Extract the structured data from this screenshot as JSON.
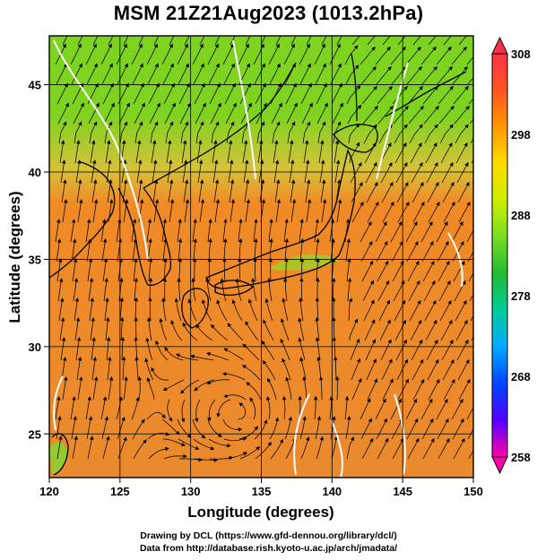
{
  "title": "MSM 21Z21Aug2023 (1013.2hPa)",
  "map": {
    "x_label": "Longitude (degrees)",
    "y_label": "Latitude  (degrees)",
    "lon_range": [
      120,
      150
    ],
    "lat_range": [
      22.5,
      47.8
    ],
    "lon_ticks": [
      "120",
      "125",
      "130",
      "135",
      "140",
      "145",
      "150"
    ],
    "lat_ticks": [
      "25",
      "30",
      "35",
      "40",
      "45"
    ],
    "grid_lons": [
      125,
      130,
      135,
      140,
      145
    ],
    "grid_lats": [
      25,
      30,
      35,
      40,
      45
    ]
  },
  "colorbar": {
    "ticks": [
      "308",
      "298",
      "288",
      "278",
      "268",
      "258"
    ],
    "min": 258,
    "max": 308,
    "colors": [
      "#ff00aa",
      "#5500ff",
      "#0044ff",
      "#00aaff",
      "#00cc99",
      "#22bb33",
      "#77dd22",
      "#ccee00",
      "#ffdd00",
      "#ff9900",
      "#ff5522",
      "#ff3344"
    ]
  },
  "field_colors": {
    "north": "#7ed320",
    "transition": "#d6c23a",
    "south": "#f08a26",
    "sea_southeast": "#ea8a2e"
  },
  "footer": {
    "line1": "Drawing by DCL (https://www.gfd-dennou.org/library/dcl/)",
    "line2": "Data from http://database.rish.kyoto-u.ac.jp/arch/jmadata/"
  }
}
